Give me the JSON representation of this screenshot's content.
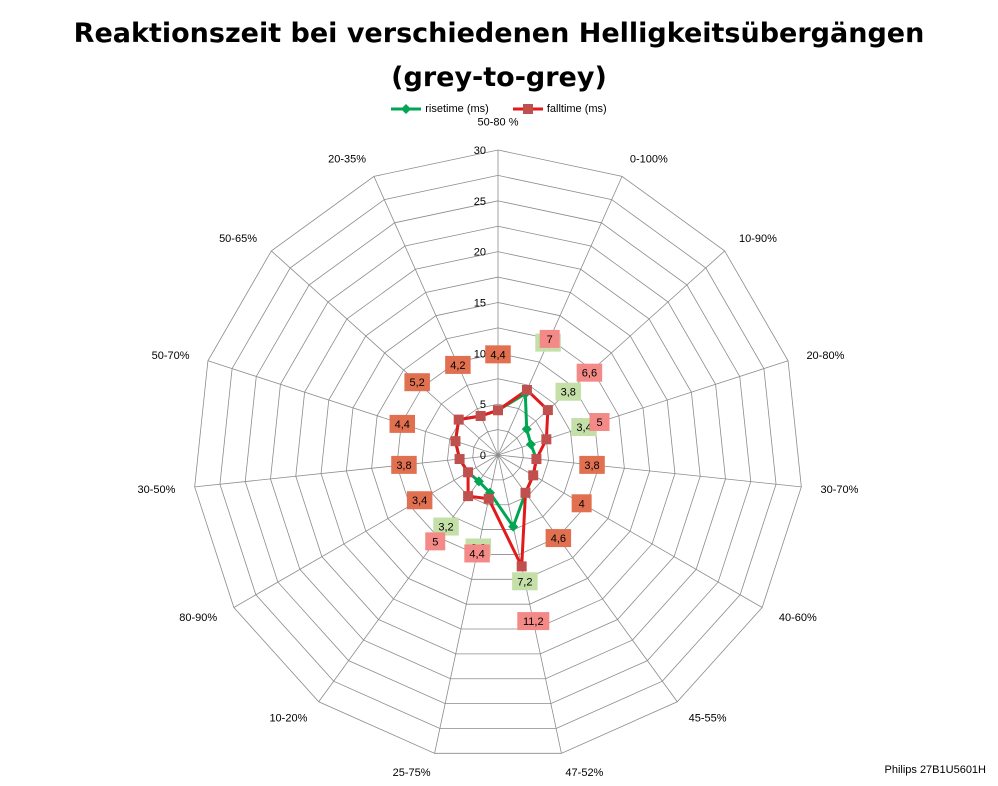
{
  "chart_data": {
    "type": "radar",
    "title": "Reaktionszeit bei verschiedenen Helligkeitsübergängen (grey-to-grey)",
    "title_lines": [
      "Reaktionszeit bei verschiedenen Helligkeitsübergängen",
      "(grey-to-grey)"
    ],
    "categories": [
      "50-80 %",
      "0-100%",
      "10-90%",
      "20-80%",
      "30-70%",
      "40-60%",
      "45-55%",
      "47-52%",
      "25-75%",
      "10-20%",
      "80-90%",
      "30-50%",
      "50-70%",
      "50-65%",
      "20-35%"
    ],
    "axis_ticks": [
      0,
      5,
      10,
      15,
      20,
      25,
      30
    ],
    "rlim": [
      0,
      30
    ],
    "legend_position": "top",
    "series": [
      {
        "name": "risetime (ms)",
        "color": "#00A651",
        "label_bg": "#C4E0A8",
        "marker": "diamond",
        "values": [
          4.4,
          6.6,
          3.8,
          3.4,
          3.8,
          4,
          4.6,
          7.2,
          3.8,
          3.2,
          3.4,
          3.8,
          4.4,
          5.2,
          4.2
        ],
        "labels": [
          "4,4",
          "6,6",
          "3,8",
          "3,4",
          "3,8",
          "4",
          "4,6",
          "7,2",
          "3,8",
          "3,2",
          "3,4",
          "3,8",
          "4,4",
          "5,2",
          "4,2"
        ]
      },
      {
        "name": "falltime (ms)",
        "color": "#E31A1C",
        "label_bg": "#F48A88",
        "marker": "square",
        "values": [
          4.4,
          7,
          6.6,
          5,
          3.8,
          4,
          4.6,
          11.2,
          4.4,
          5,
          3.4,
          3.8,
          4.4,
          5.2,
          4.2
        ],
        "labels": [
          "4,4",
          "7",
          "6,6",
          "5",
          "3,8",
          "4",
          "4,6",
          "11,2",
          "4,4",
          "5",
          "3,4",
          "3,8",
          "4,4",
          "5,2",
          "4,2"
        ]
      }
    ],
    "overlap_label_bg": "#E07050",
    "credit": "Philips 27B1U5601H"
  }
}
